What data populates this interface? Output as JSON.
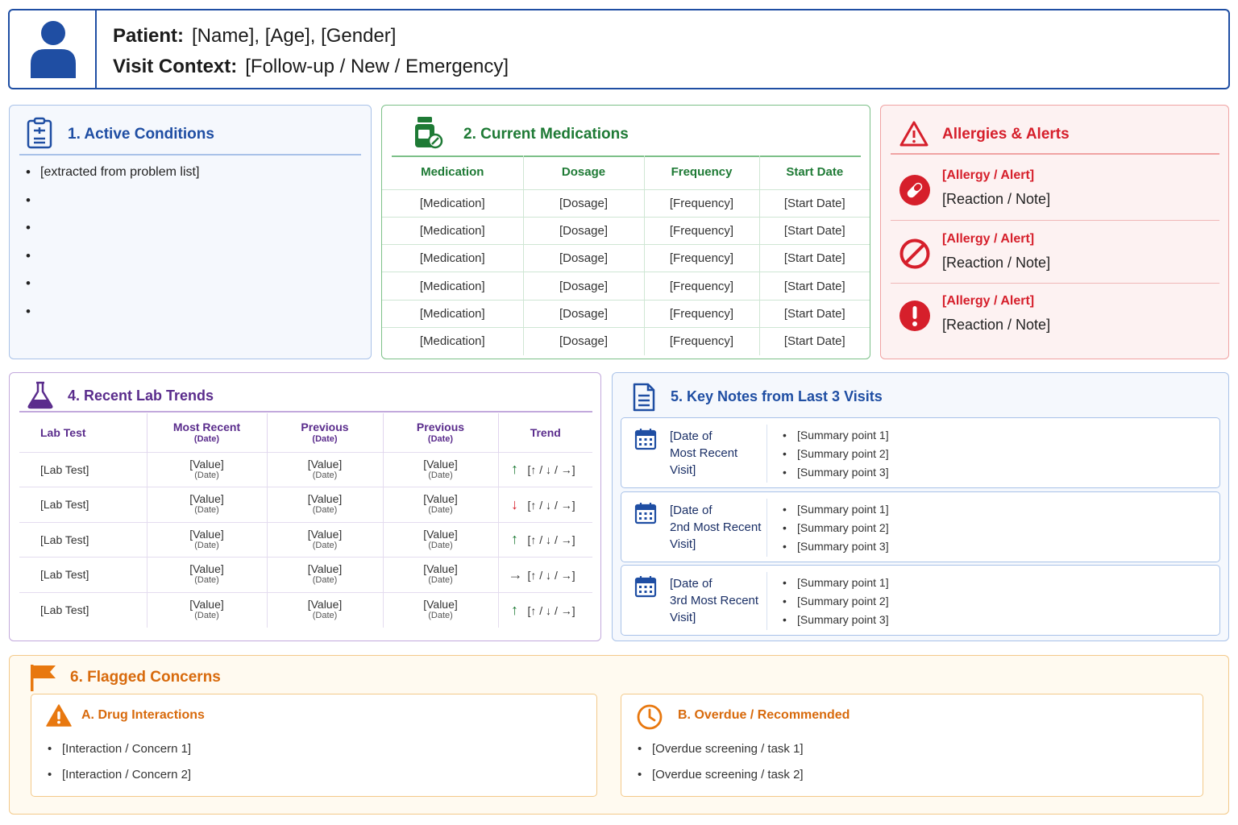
{
  "colors": {
    "primary_blue": "#1f4ea3",
    "green": "#1e7a35",
    "red": "#d61f2b",
    "purple": "#5a2c8c",
    "orange": "#d86a0c"
  },
  "header": {
    "patient_label": "Patient:",
    "patient_value": "[Name], [Age], [Gender]",
    "visit_label": "Visit Context:",
    "visit_value": "[Follow-up / New / Emergency]",
    "icon": "user-icon"
  },
  "conditions": {
    "title": "1. Active Conditions",
    "icon": "clipboard-icon",
    "items": [
      "[extracted from problem list]",
      "",
      "",
      "",
      "",
      ""
    ]
  },
  "medications": {
    "title": "2. Current Medications",
    "icon": "pill-bottle-icon",
    "columns": [
      "Medication",
      "Dosage",
      "Frequency",
      "Start Date"
    ],
    "rows": [
      [
        "[Medication]",
        "[Dosage]",
        "[Frequency]",
        "[Start Date]"
      ],
      [
        "[Medication]",
        "[Dosage]",
        "[Frequency]",
        "[Start Date]"
      ],
      [
        "[Medication]",
        "[Dosage]",
        "[Frequency]",
        "[Start Date]"
      ],
      [
        "[Medication]",
        "[Dosage]",
        "[Frequency]",
        "[Start Date]"
      ],
      [
        "[Medication]",
        "[Dosage]",
        "[Frequency]",
        "[Start Date]"
      ],
      [
        "[Medication]",
        "[Dosage]",
        "[Frequency]",
        "[Start Date]"
      ]
    ]
  },
  "alerts": {
    "title": "Allergies & Alerts",
    "icon": "warning-triangle-icon",
    "items": [
      {
        "title": "[Allergy / Alert]",
        "note": "[Reaction / Note]",
        "icon": "pill-icon"
      },
      {
        "title": "[Allergy / Alert]",
        "note": "[Reaction / Note]",
        "icon": "prohibited-icon"
      },
      {
        "title": "[Allergy / Alert]",
        "note": "[Reaction / Note]",
        "icon": "exclamation-icon"
      }
    ]
  },
  "labs": {
    "title": "4. Recent Lab Trends",
    "icon": "flask-icon",
    "columns": [
      {
        "label": "Lab Test",
        "sub": ""
      },
      {
        "label": "Most Recent",
        "sub": "(Date)"
      },
      {
        "label": "Previous",
        "sub": "(Date)"
      },
      {
        "label": "Previous",
        "sub": "(Date)"
      },
      {
        "label": "Trend",
        "sub": ""
      }
    ],
    "rows": [
      {
        "test": "[Lab Test]",
        "v1": "[Value]",
        "d1": "(Date)",
        "v2": "[Value]",
        "d2": "(Date)",
        "v3": "[Value]",
        "d3": "(Date)",
        "arrow": "↑",
        "arrow_color": "#1e7a35",
        "trend": "[↑ / ↓ / →]"
      },
      {
        "test": "[Lab Test]",
        "v1": "[Value]",
        "d1": "(Date)",
        "v2": "[Value]",
        "d2": "(Date)",
        "v3": "[Value]",
        "d3": "(Date)",
        "arrow": "↓",
        "arrow_color": "#d61f2b",
        "trend": "[↑ / ↓ / →]"
      },
      {
        "test": "[Lab Test]",
        "v1": "[Value]",
        "d1": "(Date)",
        "v2": "[Value]",
        "d2": "(Date)",
        "v3": "[Value]",
        "d3": "(Date)",
        "arrow": "↑",
        "arrow_color": "#1e7a35",
        "trend": "[↑ / ↓ / →]"
      },
      {
        "test": "[Lab Test]",
        "v1": "[Value]",
        "d1": "(Date)",
        "v2": "[Value]",
        "d2": "(Date)",
        "v3": "[Value]",
        "d3": "(Date)",
        "arrow": "→",
        "arrow_color": "#444444",
        "trend": "[↑ / ↓ / →]"
      },
      {
        "test": "[Lab Test]",
        "v1": "[Value]",
        "d1": "(Date)",
        "v2": "[Value]",
        "d2": "(Date)",
        "v3": "[Value]",
        "d3": "(Date)",
        "arrow": "↑",
        "arrow_color": "#1e7a35",
        "trend": "[↑ / ↓ / →]"
      }
    ]
  },
  "notes": {
    "title": "5. Key Notes from Last 3 Visits",
    "icon": "document-icon",
    "visits": [
      {
        "date_lines": [
          "[Date of",
          "Most Recent",
          "Visit]"
        ],
        "points": [
          "[Summary point 1]",
          "[Summary point 2]",
          "[Summary point 3]"
        ]
      },
      {
        "date_lines": [
          "[Date of",
          "2nd Most Recent",
          "Visit]"
        ],
        "points": [
          "[Summary point 1]",
          "[Summary point 2]",
          "[Summary point 3]"
        ]
      },
      {
        "date_lines": [
          "[Date of",
          "3rd Most Recent",
          "Visit]"
        ],
        "points": [
          "[Summary point 1]",
          "[Summary point 2]",
          "[Summary point 3]"
        ]
      }
    ]
  },
  "flagged": {
    "title": "6. Flagged Concerns",
    "icon": "flag-icon",
    "drug": {
      "title": "A. Drug Interactions",
      "icon": "warning-icon",
      "items": [
        "[Interaction / Concern 1]",
        "[Interaction / Concern 2]"
      ]
    },
    "overdue": {
      "title": "B. Overdue / Recommended",
      "icon": "clock-icon",
      "items": [
        "[Overdue screening / task 1]",
        "[Overdue screening / task 2]"
      ]
    }
  }
}
